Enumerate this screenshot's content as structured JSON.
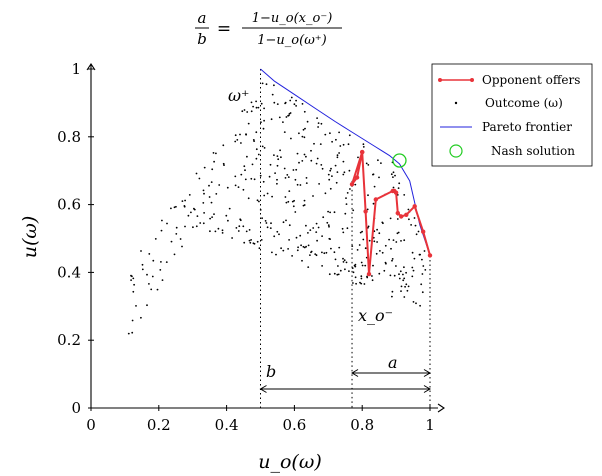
{
  "chart_data": {
    "type": "scatter",
    "title": {
      "numerator": "a",
      "denominator": "b",
      "equals": "=",
      "rhs_numerator": "1−u_o(x_o⁻)",
      "rhs_denominator": "1−u_o(ω⁺)"
    },
    "xlabel": "u_o(ω)",
    "ylabel": "u(ω)",
    "xlim": [
      0,
      1
    ],
    "ylim": [
      0,
      1
    ],
    "x_ticks": [
      "0",
      "0.2",
      "0.4",
      "0.6",
      "0.8",
      "1"
    ],
    "y_ticks": [
      "0",
      "0.2",
      "0.4",
      "0.6",
      "0.8",
      "1"
    ],
    "grid": false,
    "legend_position": "top-right",
    "legend": [
      {
        "label": "Opponent offers",
        "color": "#e8333a",
        "kind": "line-marker"
      },
      {
        "label": "Outcome (ω)",
        "color": "#000000",
        "kind": "dot"
      },
      {
        "label": "Pareto frontier",
        "color": "#2222dd",
        "kind": "line"
      },
      {
        "label": "Nash solution",
        "color": "#22cc22",
        "kind": "circle"
      }
    ],
    "series": [
      {
        "name": "Pareto frontier",
        "color": "#2222dd",
        "x": [
          0.5,
          0.54,
          0.6,
          0.66,
          0.72,
          0.76,
          0.8,
          0.84,
          0.88,
          0.91,
          0.94,
          0.97,
          1.0
        ],
        "y": [
          1.0,
          0.965,
          0.925,
          0.885,
          0.845,
          0.82,
          0.795,
          0.77,
          0.745,
          0.72,
          0.67,
          0.54,
          0.45
        ]
      },
      {
        "name": "Opponent offers",
        "color": "#e8333a",
        "x": [
          1.0,
          0.98,
          0.955,
          0.93,
          0.915,
          0.905,
          0.9,
          0.895,
          0.89,
          0.84,
          0.82,
          0.81,
          0.8,
          0.785,
          0.77,
          0.8
        ],
        "y": [
          0.45,
          0.52,
          0.595,
          0.57,
          0.565,
          0.575,
          0.635,
          0.64,
          0.64,
          0.615,
          0.395,
          0.58,
          0.755,
          0.68,
          0.66,
          0.755
        ]
      }
    ],
    "nash_solution": {
      "x": 0.91,
      "y": 0.73
    },
    "outcomes_note": "scatter cloud",
    "annotations": {
      "omega_plus_label": "ω⁺",
      "omega_plus_x": 0.5,
      "x_o_minus_label": "x_o⁻",
      "x_o_minus_x": 0.77,
      "a_label": "a",
      "b_label": "b"
    }
  }
}
